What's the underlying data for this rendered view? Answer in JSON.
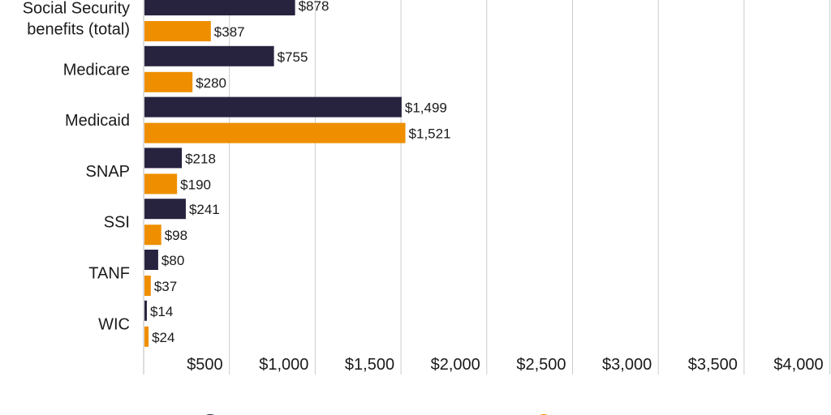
{
  "chart_data": {
    "type": "bar",
    "orientation": "horizontal",
    "categories": [
      [
        "Social Security",
        "benefits (total)"
      ],
      [
        "Medicare"
      ],
      [
        "Medicaid"
      ],
      [
        "SNAP"
      ],
      [
        "SSI"
      ],
      [
        "TANF"
      ],
      [
        "WIC"
      ]
    ],
    "series": [
      {
        "values": [
          878,
          755,
          1499,
          218,
          241,
          80,
          14
        ],
        "color": "#27233f"
      },
      {
        "values": [
          387,
          280,
          1521,
          190,
          98,
          37,
          24
        ],
        "color": "#ef8f00"
      }
    ],
    "data_labels": [
      [
        "$878",
        "$755",
        "$1,499",
        "$218",
        "$241",
        "$80",
        "$14"
      ],
      [
        "$387",
        "$280",
        "$1,521",
        "$190",
        "$98",
        "$37",
        "$24"
      ]
    ],
    "xticks": [
      500,
      1000,
      1500,
      2000,
      2500,
      3000,
      3500,
      4000
    ],
    "xtick_labels": [
      "$500",
      "$1,000",
      "$1,500",
      "$2,000",
      "$2,500",
      "$3,000",
      "$3,500",
      "$4,000"
    ],
    "xlim": [
      0,
      4000
    ],
    "grid": true,
    "legend": "bottom",
    "gridline_color": "#cccccc"
  }
}
